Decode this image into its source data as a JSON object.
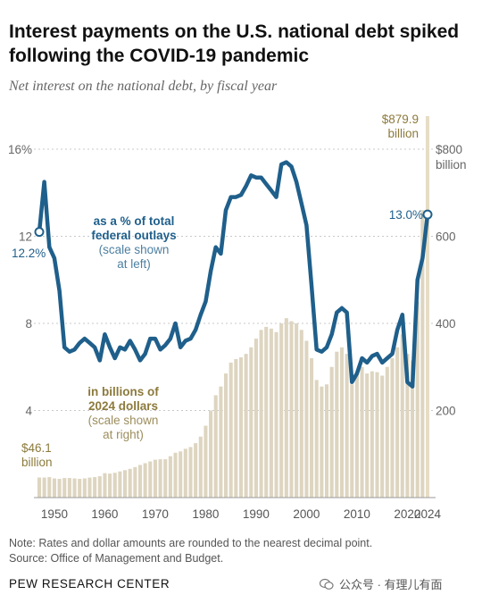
{
  "title": "Interest payments on the U.S. national debt spiked following the COVID-19 pandemic",
  "subtitle": "Net interest on the national debt, by fiscal year",
  "chart_data": {
    "type": "bar+line",
    "x_ticks": [
      "1950",
      "1960",
      "1970",
      "1980",
      "1990",
      "2000",
      "2010",
      "2020",
      "2024"
    ],
    "x_range": [
      1947,
      2024
    ],
    "left_axis": {
      "ticks": [
        "4",
        "8",
        "12",
        "16%"
      ],
      "range": [
        0,
        16
      ]
    },
    "right_axis": {
      "ticks": [
        "200",
        "400",
        "600",
        "$800"
      ],
      "unit_label": "billion",
      "range": [
        0,
        800
      ]
    },
    "bar_color": "#ddd5c0",
    "bar_highlight_color": "#e6ddc6",
    "line_color": "#1f5f8b",
    "years": [
      1947,
      1948,
      1949,
      1950,
      1951,
      1952,
      1953,
      1954,
      1955,
      1956,
      1957,
      1958,
      1959,
      1960,
      1961,
      1962,
      1963,
      1964,
      1965,
      1966,
      1967,
      1968,
      1969,
      1970,
      1971,
      1972,
      1973,
      1974,
      1975,
      1976,
      1977,
      1978,
      1979,
      1980,
      1981,
      1982,
      1983,
      1984,
      1985,
      1986,
      1987,
      1988,
      1989,
      1990,
      1991,
      1992,
      1993,
      1994,
      1995,
      1996,
      1997,
      1998,
      1999,
      2000,
      2001,
      2002,
      2003,
      2004,
      2005,
      2006,
      2007,
      2008,
      2009,
      2010,
      2011,
      2012,
      2013,
      2014,
      2015,
      2016,
      2017,
      2018,
      2019,
      2020,
      2021,
      2022,
      2023,
      2024
    ],
    "series": [
      {
        "name": "in billions of 2024 dollars",
        "axis": "right",
        "type": "bar",
        "values": [
          46.1,
          46,
          47,
          44,
          43,
          45,
          45,
          44,
          43,
          44,
          46,
          47,
          49,
          56,
          55,
          57,
          60,
          63,
          66,
          70,
          75,
          79,
          83,
          87,
          88,
          88,
          95,
          103,
          106,
          112,
          116,
          125,
          140,
          165,
          200,
          235,
          255,
          285,
          310,
          318,
          322,
          330,
          345,
          365,
          385,
          392,
          388,
          380,
          400,
          412,
          405,
          400,
          385,
          360,
          320,
          270,
          255,
          260,
          300,
          335,
          345,
          330,
          260,
          285,
          300,
          285,
          290,
          288,
          280,
          300,
          320,
          345,
          375,
          330,
          315,
          450,
          660,
          879.9
        ]
      },
      {
        "name": "as a % of total federal outlays",
        "axis": "left",
        "type": "line",
        "values": [
          12.2,
          14.5,
          11.5,
          11.0,
          9.5,
          6.9,
          6.7,
          6.8,
          7.1,
          7.3,
          7.1,
          6.9,
          6.3,
          7.5,
          6.9,
          6.4,
          6.9,
          6.8,
          7.2,
          6.8,
          6.3,
          6.6,
          7.3,
          7.3,
          6.8,
          7.0,
          7.3,
          8.0,
          6.9,
          7.2,
          7.3,
          7.7,
          8.4,
          9.0,
          10.4,
          11.5,
          11.2,
          13.2,
          13.8,
          13.8,
          13.9,
          14.3,
          14.8,
          14.7,
          14.7,
          14.4,
          14.1,
          13.8,
          15.3,
          15.4,
          15.2,
          14.5,
          13.5,
          12.5,
          9.7,
          6.8,
          6.7,
          6.9,
          7.5,
          8.5,
          8.7,
          8.5,
          5.3,
          5.7,
          6.4,
          6.2,
          6.5,
          6.6,
          6.2,
          6.4,
          6.6,
          7.7,
          8.4,
          5.3,
          5.1,
          10.0,
          11.0,
          13.0
        ]
      }
    ],
    "annotations": {
      "bar_first": {
        "value": "$46.1",
        "unit": "billion"
      },
      "bar_last": {
        "value": "$879.9",
        "unit": "billion"
      },
      "line_first": "12.2%",
      "line_last": "13.0%",
      "line_label": [
        "as a % of total",
        "federal outlays",
        "(scale shown",
        "at left)"
      ],
      "bar_label": [
        "in billions of",
        "2024 dollars",
        "(scale shown",
        "at right)"
      ]
    }
  },
  "note": "Note: Rates and dollar amounts are rounded to the nearest decimal point.",
  "source": "Source: Office of Management and Budget.",
  "brand": "PEW RESEARCH CENTER",
  "watermark": "公众号 · 有理儿有面"
}
